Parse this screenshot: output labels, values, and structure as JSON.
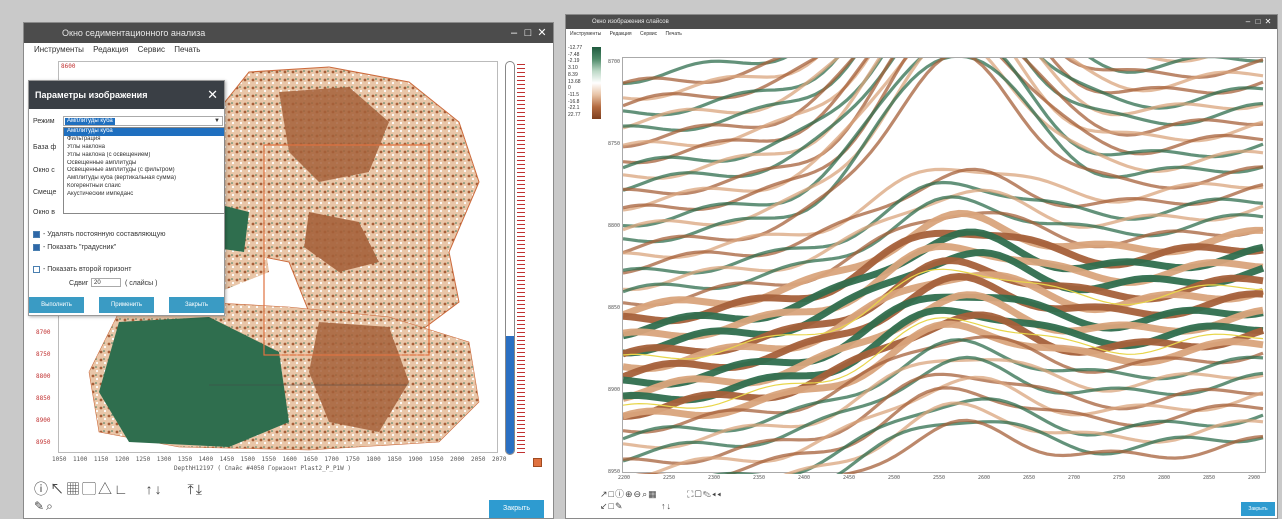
{
  "left_window": {
    "title": "Окно седиментационного анализа",
    "menu": [
      "Инструменты",
      "Редакция",
      "Сервис",
      "Печать"
    ],
    "close_label": "Закрыть",
    "x_ticks": [
      "1050",
      "1100",
      "1150",
      "1200",
      "1250",
      "1300",
      "1350",
      "1400",
      "1450",
      "1500",
      "1550",
      "1600",
      "1650",
      "1700",
      "1750",
      "1800",
      "1850",
      "1900",
      "1950",
      "2000",
      "2050",
      "2070"
    ],
    "y_ticks": [
      "8650",
      "8700",
      "8750",
      "8800",
      "8850",
      "8900",
      "8950"
    ],
    "y_top_label": "8600",
    "caption": "DepthH12197 ( Спайс #4050  Горизонт Plast2_P_P1W )",
    "dialog": {
      "title": "Параметры изображения",
      "mode_label": "Режим",
      "mode_selected": "Амплитуды куба",
      "mode_options": [
        "Амплитуды куба",
        "Фильтрация",
        "Углы наклона",
        "Углы наклона (с освещением)",
        "Освещенные амплитуды",
        "Освещенные амплитуды (с фильтром)",
        "Амплитуды куба (вертикальная сумма)",
        "Когерентный слайс",
        "Акустический импеданс"
      ],
      "rows": [
        "База ф",
        "Окно с",
        "Смеще",
        "Окно в"
      ],
      "check_remove": "- Удалять постоянную составляющую",
      "check_gradients": "- Показать \"градусник\"",
      "check_second": "- Показать второй горизонт",
      "shift_label": "Сдвиг",
      "shift_value": "20",
      "shift_units": "( слайсы )",
      "buttons": [
        "Выполнить",
        "Применить",
        "Закрыть"
      ]
    }
  },
  "right_window": {
    "title": "Окно изображения слайсов",
    "menu": [
      "Инструменты",
      "Редакция",
      "Сервис",
      "Печать"
    ],
    "close_label": "Закрыть",
    "legend_values": [
      "-12.77",
      "-7.48",
      "-2.19",
      "3.10",
      "8.39",
      "13.68",
      "0",
      "-11.5",
      "-16.8",
      "-22.1",
      "22.77"
    ],
    "y_ticks": [
      "8700",
      "8750",
      "8800",
      "8850",
      "8900",
      "8950"
    ],
    "x_ticks": [
      "2200",
      "2250",
      "2300",
      "2350",
      "2400",
      "2450",
      "2500",
      "2550",
      "2600",
      "2650",
      "2700",
      "2750",
      "2800",
      "2850",
      "2900"
    ]
  },
  "colors": {
    "green": "#2f6e4e",
    "brown": "#a5603a",
    "tan": "#d9a47c",
    "accent_blue": "#2e9bd0",
    "titlebar": "#4c4c4c"
  }
}
